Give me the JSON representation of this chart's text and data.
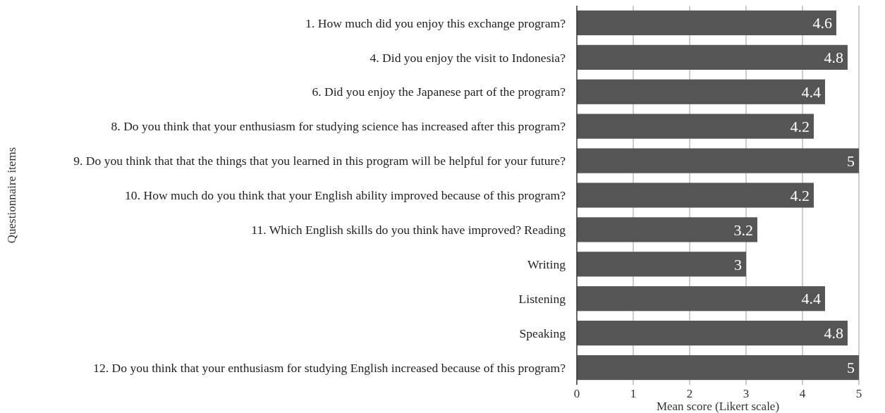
{
  "chart_data": {
    "type": "bar",
    "orientation": "horizontal",
    "xlabel": "Mean score (Likert scale)",
    "ylabel": "Questionnaire items",
    "categories": [
      "1. How much did you enjoy this exchange program?",
      "4. Did you enjoy the visit to Indonesia?",
      "6. Did you enjoy the Japanese part of the program?",
      "8. Do you think that your enthusiasm for studying science has increased after this program?",
      "9. Do you think that that the things that you learned in this program will be helpful for your future?",
      "10. How much do you think that your English ability improved because of this program?",
      "11. Which English skills do you think have improved?  Reading",
      "Writing",
      "Listening",
      "Speaking",
      "12. Do you think that your enthusiasm for studying English increased because of this program?"
    ],
    "values": [
      4.6,
      4.8,
      4.4,
      4.2,
      5,
      4.2,
      3.2,
      3,
      4.4,
      4.8,
      5
    ],
    "color": "#555555",
    "xlim": [
      0,
      5
    ],
    "xticks": [
      0,
      1,
      2,
      3,
      4,
      5
    ],
    "grid": "x",
    "data_labels": true
  }
}
